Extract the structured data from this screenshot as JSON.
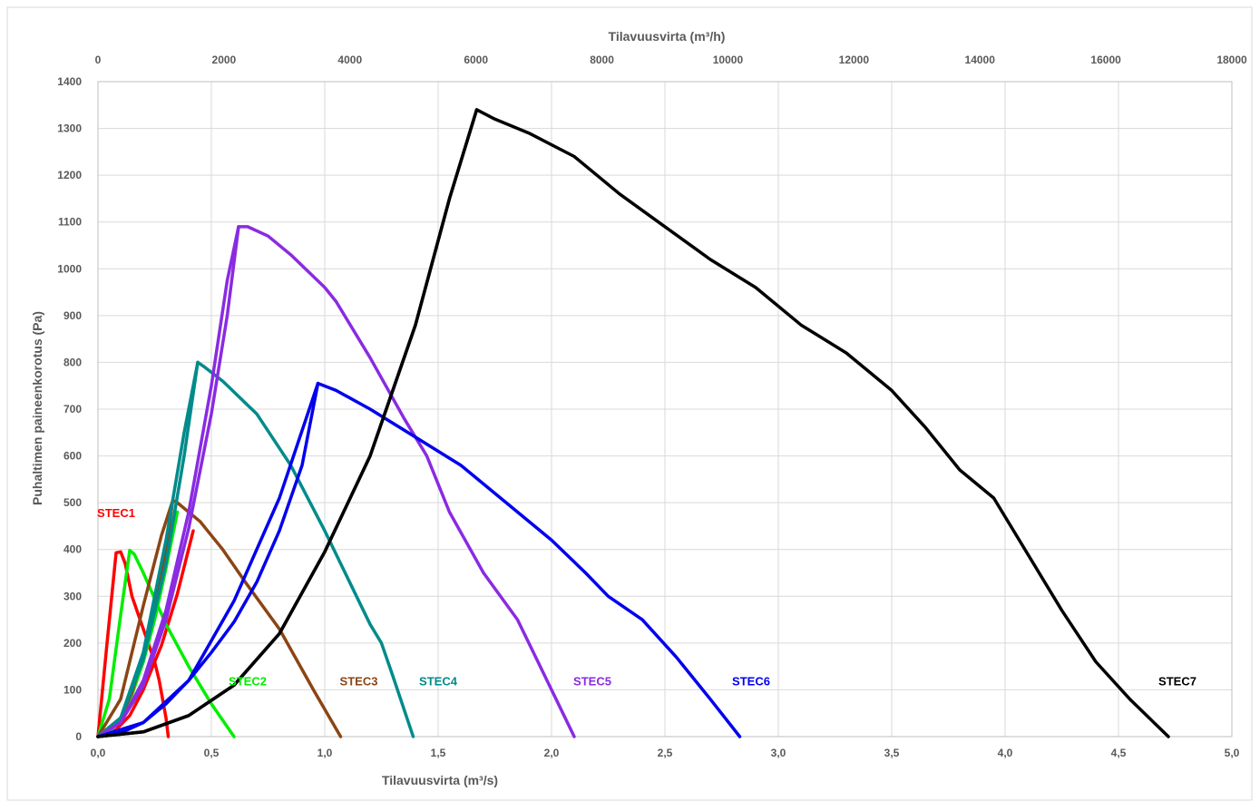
{
  "chart_data": {
    "type": "line",
    "xlabel": "Tilavuusvirta  (m³/s)",
    "x2label": "Tilavuusvirta  (m³/h)",
    "ylabel": "Puhaltimen paineenkorotus (Pa)",
    "xlim": [
      0,
      5
    ],
    "x2lim": [
      0,
      18000
    ],
    "ylim": [
      0,
      1400
    ],
    "x_ticks": [
      "0,0",
      "0,5",
      "1,0",
      "1,5",
      "2,0",
      "2,5",
      "3,0",
      "3,5",
      "4,0",
      "4,5",
      "5,0"
    ],
    "x2_ticks": [
      "0",
      "2000",
      "4000",
      "6000",
      "8000",
      "10000",
      "12000",
      "14000",
      "16000",
      "18000"
    ],
    "y_ticks": [
      "0",
      "100",
      "200",
      "300",
      "400",
      "500",
      "600",
      "700",
      "800",
      "900",
      "1000",
      "1100",
      "1200",
      "1300",
      "1400"
    ],
    "grid": true,
    "series": [
      {
        "name": "STEC1",
        "color": "#ff0000",
        "label_at": [
          0.08,
          460
        ],
        "curve": [
          [
            0.0,
            0
          ],
          [
            0.04,
            200
          ],
          [
            0.08,
            393
          ],
          [
            0.1,
            395
          ],
          [
            0.12,
            370
          ],
          [
            0.15,
            300
          ],
          [
            0.2,
            230
          ],
          [
            0.25,
            160
          ],
          [
            0.27,
            120
          ],
          [
            0.3,
            40
          ],
          [
            0.31,
            0
          ]
        ],
        "system": [
          [
            0.0,
            0
          ],
          [
            0.04,
            4
          ],
          [
            0.08,
            15
          ],
          [
            0.14,
            45
          ],
          [
            0.2,
            100
          ],
          [
            0.28,
            195
          ],
          [
            0.35,
            305
          ],
          [
            0.42,
            440
          ]
        ]
      },
      {
        "name": "STEC2",
        "color": "#00ee00",
        "label_at": [
          0.66,
          100
        ],
        "curve": [
          [
            0.0,
            0
          ],
          [
            0.05,
            80
          ],
          [
            0.1,
            260
          ],
          [
            0.14,
            398
          ],
          [
            0.16,
            390
          ],
          [
            0.2,
            350
          ],
          [
            0.3,
            240
          ],
          [
            0.4,
            150
          ],
          [
            0.5,
            70
          ],
          [
            0.6,
            0
          ]
        ],
        "system": [
          [
            0.0,
            0
          ],
          [
            0.05,
            10
          ],
          [
            0.1,
            40
          ],
          [
            0.15,
            90
          ],
          [
            0.2,
            160
          ],
          [
            0.25,
            250
          ],
          [
            0.3,
            360
          ],
          [
            0.35,
            480
          ]
        ]
      },
      {
        "name": "STEC3",
        "color": "#8b4513",
        "label_at": [
          1.15,
          100
        ],
        "curve": [
          [
            0.0,
            0
          ],
          [
            0.1,
            80
          ],
          [
            0.2,
            280
          ],
          [
            0.28,
            430
          ],
          [
            0.33,
            505
          ],
          [
            0.35,
            500
          ],
          [
            0.45,
            460
          ],
          [
            0.55,
            400
          ],
          [
            0.65,
            330
          ],
          [
            0.8,
            230
          ],
          [
            0.95,
            100
          ],
          [
            1.07,
            0
          ]
        ],
        "system": [
          [
            0.0,
            0
          ],
          [
            0.1,
            40
          ],
          [
            0.15,
            95
          ],
          [
            0.2,
            175
          ],
          [
            0.25,
            280
          ],
          [
            0.3,
            400
          ],
          [
            0.33,
            505
          ]
        ]
      },
      {
        "name": "STEC4",
        "color": "#008b8b",
        "label_at": [
          1.5,
          100
        ],
        "curve": [
          [
            0.0,
            0
          ],
          [
            0.1,
            40
          ],
          [
            0.2,
            180
          ],
          [
            0.3,
            420
          ],
          [
            0.38,
            650
          ],
          [
            0.44,
            800
          ],
          [
            0.47,
            790
          ],
          [
            0.55,
            760
          ],
          [
            0.7,
            690
          ],
          [
            0.85,
            580
          ],
          [
            1.0,
            440
          ],
          [
            1.1,
            340
          ],
          [
            1.2,
            240
          ],
          [
            1.25,
            200
          ],
          [
            1.3,
            130
          ],
          [
            1.39,
            0
          ]
        ],
        "system": [
          [
            0.0,
            0
          ],
          [
            0.1,
            40
          ],
          [
            0.2,
            165
          ],
          [
            0.3,
            370
          ],
          [
            0.38,
            600
          ],
          [
            0.44,
            800
          ]
        ]
      },
      {
        "name": "STEC5",
        "color": "#8a2be2",
        "label_at": [
          2.18,
          100
        ],
        "curve": [
          [
            0.0,
            0
          ],
          [
            0.1,
            30
          ],
          [
            0.2,
            110
          ],
          [
            0.3,
            250
          ],
          [
            0.4,
            445
          ],
          [
            0.5,
            690
          ],
          [
            0.57,
            900
          ],
          [
            0.62,
            1090
          ],
          [
            0.66,
            1090
          ],
          [
            0.75,
            1070
          ],
          [
            0.85,
            1030
          ],
          [
            1.0,
            960
          ],
          [
            1.05,
            930
          ],
          [
            1.2,
            810
          ],
          [
            1.35,
            680
          ],
          [
            1.45,
            600
          ],
          [
            1.55,
            480
          ],
          [
            1.7,
            350
          ],
          [
            1.85,
            250
          ],
          [
            1.95,
            150
          ],
          [
            2.05,
            50
          ],
          [
            2.1,
            0
          ]
        ],
        "system": [
          [
            0.0,
            0
          ],
          [
            0.1,
            30
          ],
          [
            0.2,
            120
          ],
          [
            0.3,
            270
          ],
          [
            0.4,
            480
          ],
          [
            0.5,
            750
          ],
          [
            0.57,
            975
          ],
          [
            0.62,
            1090
          ]
        ]
      },
      {
        "name": "STEC6",
        "color": "#0000ee",
        "label_at": [
          2.88,
          100
        ],
        "curve": [
          [
            0.0,
            0
          ],
          [
            0.1,
            8
          ],
          [
            0.2,
            30
          ],
          [
            0.3,
            70
          ],
          [
            0.4,
            120
          ],
          [
            0.5,
            180
          ],
          [
            0.6,
            245
          ],
          [
            0.7,
            330
          ],
          [
            0.8,
            440
          ],
          [
            0.9,
            580
          ],
          [
            0.97,
            755
          ],
          [
            1.05,
            740
          ],
          [
            1.2,
            700
          ],
          [
            1.4,
            640
          ],
          [
            1.6,
            580
          ],
          [
            1.8,
            500
          ],
          [
            2.0,
            420
          ],
          [
            2.15,
            350
          ],
          [
            2.25,
            300
          ],
          [
            2.4,
            250
          ],
          [
            2.55,
            170
          ],
          [
            2.7,
            80
          ],
          [
            2.83,
            0
          ]
        ],
        "system": [
          [
            0.0,
            0
          ],
          [
            0.2,
            30
          ],
          [
            0.4,
            120
          ],
          [
            0.6,
            290
          ],
          [
            0.8,
            510
          ],
          [
            0.97,
            755
          ]
        ]
      },
      {
        "name": "STEC7",
        "color": "#000000",
        "label_at": [
          4.76,
          100
        ],
        "curve": [
          [
            0.0,
            0
          ],
          [
            0.2,
            10
          ],
          [
            0.4,
            45
          ],
          [
            0.6,
            110
          ],
          [
            0.8,
            220
          ],
          [
            1.0,
            395
          ],
          [
            1.2,
            600
          ],
          [
            1.4,
            880
          ],
          [
            1.55,
            1150
          ],
          [
            1.67,
            1340
          ],
          [
            1.75,
            1320
          ],
          [
            1.9,
            1290
          ],
          [
            2.1,
            1240
          ],
          [
            2.3,
            1160
          ],
          [
            2.5,
            1090
          ],
          [
            2.7,
            1020
          ],
          [
            2.9,
            960
          ],
          [
            3.1,
            880
          ],
          [
            3.3,
            820
          ],
          [
            3.5,
            740
          ],
          [
            3.65,
            660
          ],
          [
            3.8,
            570
          ],
          [
            3.95,
            510
          ],
          [
            4.1,
            390
          ],
          [
            4.25,
            270
          ],
          [
            4.4,
            160
          ],
          [
            4.55,
            80
          ],
          [
            4.72,
            0
          ]
        ],
        "system": [
          [
            0.0,
            0
          ],
          [
            0.2,
            10
          ],
          [
            0.4,
            45
          ],
          [
            0.6,
            110
          ],
          [
            0.8,
            220
          ],
          [
            1.0,
            395
          ],
          [
            1.2,
            600
          ],
          [
            1.4,
            880
          ],
          [
            1.55,
            1150
          ],
          [
            1.67,
            1340
          ]
        ]
      }
    ]
  }
}
